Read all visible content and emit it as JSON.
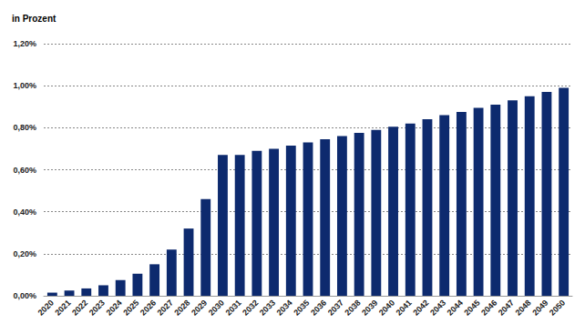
{
  "chart_data": {
    "type": "bar",
    "ylabel": "in Prozent",
    "categories": [
      "2020",
      "2021",
      "2022",
      "2023",
      "2024",
      "2025",
      "2026",
      "2027",
      "2028",
      "2029",
      "2030",
      "2031",
      "2032",
      "2033",
      "2034",
      "2035",
      "2036",
      "2037",
      "2038",
      "2039",
      "2040",
      "2041",
      "2042",
      "2043",
      "2044",
      "2045",
      "2046",
      "2047",
      "2048",
      "2049",
      "2050"
    ],
    "values": [
      0.015,
      0.025,
      0.035,
      0.05,
      0.075,
      0.105,
      0.15,
      0.22,
      0.32,
      0.46,
      0.67,
      0.67,
      0.69,
      0.7,
      0.715,
      0.73,
      0.745,
      0.76,
      0.775,
      0.79,
      0.805,
      0.82,
      0.84,
      0.86,
      0.875,
      0.895,
      0.91,
      0.93,
      0.95,
      0.97,
      0.99
    ],
    "color": "#0d2a6e",
    "ylim": [
      0,
      1.2
    ],
    "yticks": [
      {
        "value": 0,
        "label": "0,00%"
      },
      {
        "value": 0.2,
        "label": "0,20%"
      },
      {
        "value": 0.4,
        "label": "0,40%"
      },
      {
        "value": 0.6,
        "label": "0,60%"
      },
      {
        "value": 0.8,
        "label": "0,80%"
      },
      {
        "value": 1.0,
        "label": "1,00%"
      },
      {
        "value": 1.2,
        "label": "1,20%"
      }
    ],
    "grid": true
  }
}
